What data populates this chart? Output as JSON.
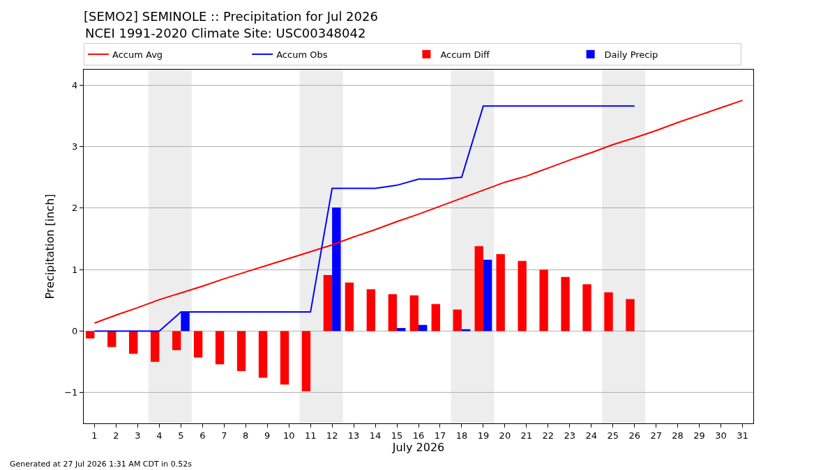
{
  "chart_data": {
    "type": "bar",
    "title": "[SEMO2] SEMINOLE :: Precipitation for Jul 2026",
    "subtitle": "NCEI 1991-2020 Climate Site: USC00348042",
    "xlabel": "July 2026",
    "ylabel": "Precipitation [inch]",
    "annotations": [
      "Generated at 27 Jul 2026 1:31 AM CDT in 0.52s"
    ],
    "x": [
      1,
      2,
      3,
      4,
      5,
      6,
      7,
      8,
      9,
      10,
      11,
      12,
      13,
      14,
      15,
      16,
      17,
      18,
      19,
      20,
      21,
      22,
      23,
      24,
      25,
      26,
      27,
      28,
      29,
      30,
      31
    ],
    "series": [
      {
        "name": "Accum Avg",
        "type": "line",
        "color": "#ff0000",
        "values": [
          0.13,
          0.26,
          0.38,
          0.51,
          0.62,
          0.73,
          0.85,
          0.96,
          1.07,
          1.18,
          1.29,
          1.4,
          1.53,
          1.65,
          1.78,
          1.9,
          2.03,
          2.16,
          2.29,
          2.42,
          2.52,
          2.65,
          2.78,
          2.9,
          3.03,
          3.14,
          3.26,
          3.39,
          3.51,
          3.63,
          3.75
        ]
      },
      {
        "name": "Accum Obs",
        "type": "line",
        "color": "#0000ff",
        "values": [
          0,
          0,
          0,
          0,
          0.31,
          0.31,
          0.31,
          0.31,
          0.31,
          0.31,
          0.31,
          2.32,
          2.32,
          2.32,
          2.37,
          2.47,
          2.47,
          2.5,
          3.66,
          3.66,
          3.66,
          3.66,
          3.66,
          3.66,
          3.66,
          3.66,
          null,
          null,
          null,
          null,
          null
        ]
      },
      {
        "name": "Accum Diff",
        "color": "#ff0000",
        "values": [
          -0.12,
          -0.26,
          -0.37,
          -0.5,
          -0.31,
          -0.43,
          -0.54,
          -0.65,
          -0.76,
          -0.87,
          -0.98,
          0.91,
          0.79,
          0.68,
          0.6,
          0.58,
          0.44,
          0.35,
          1.38,
          1.25,
          1.14,
          1.0,
          0.88,
          0.76,
          0.63,
          0.52,
          null,
          null,
          null,
          null,
          null
        ]
      },
      {
        "name": "Daily Precip",
        "color": "#0000ff",
        "values": [
          0,
          0,
          0,
          0,
          0.31,
          0,
          0,
          0,
          0,
          0,
          0,
          2.01,
          0,
          0,
          0.05,
          0.1,
          0,
          0.03,
          1.16,
          0,
          0,
          0,
          0,
          0,
          0,
          0,
          null,
          null,
          null,
          null,
          null
        ]
      }
    ],
    "bands": [
      {
        "axis": "x",
        "from": 3.5,
        "to": 5.5,
        "color": "#ededed"
      },
      {
        "axis": "x",
        "from": 10.5,
        "to": 12.5,
        "color": "#ededed"
      },
      {
        "axis": "x",
        "from": 17.5,
        "to": 19.5,
        "color": "#ededed"
      },
      {
        "axis": "x",
        "from": 24.5,
        "to": 26.5,
        "color": "#ededed"
      }
    ],
    "xlim": [
      0.5,
      31.5
    ],
    "xticks": [
      1,
      2,
      3,
      4,
      5,
      6,
      7,
      8,
      9,
      10,
      11,
      12,
      13,
      14,
      15,
      16,
      17,
      18,
      19,
      20,
      21,
      22,
      23,
      24,
      25,
      26,
      27,
      28,
      29,
      30,
      31
    ],
    "ylim": [
      -1.5,
      4.25
    ],
    "yticks": [
      -1,
      0,
      1,
      2,
      3,
      4
    ],
    "grid": "y",
    "legend": "top"
  }
}
